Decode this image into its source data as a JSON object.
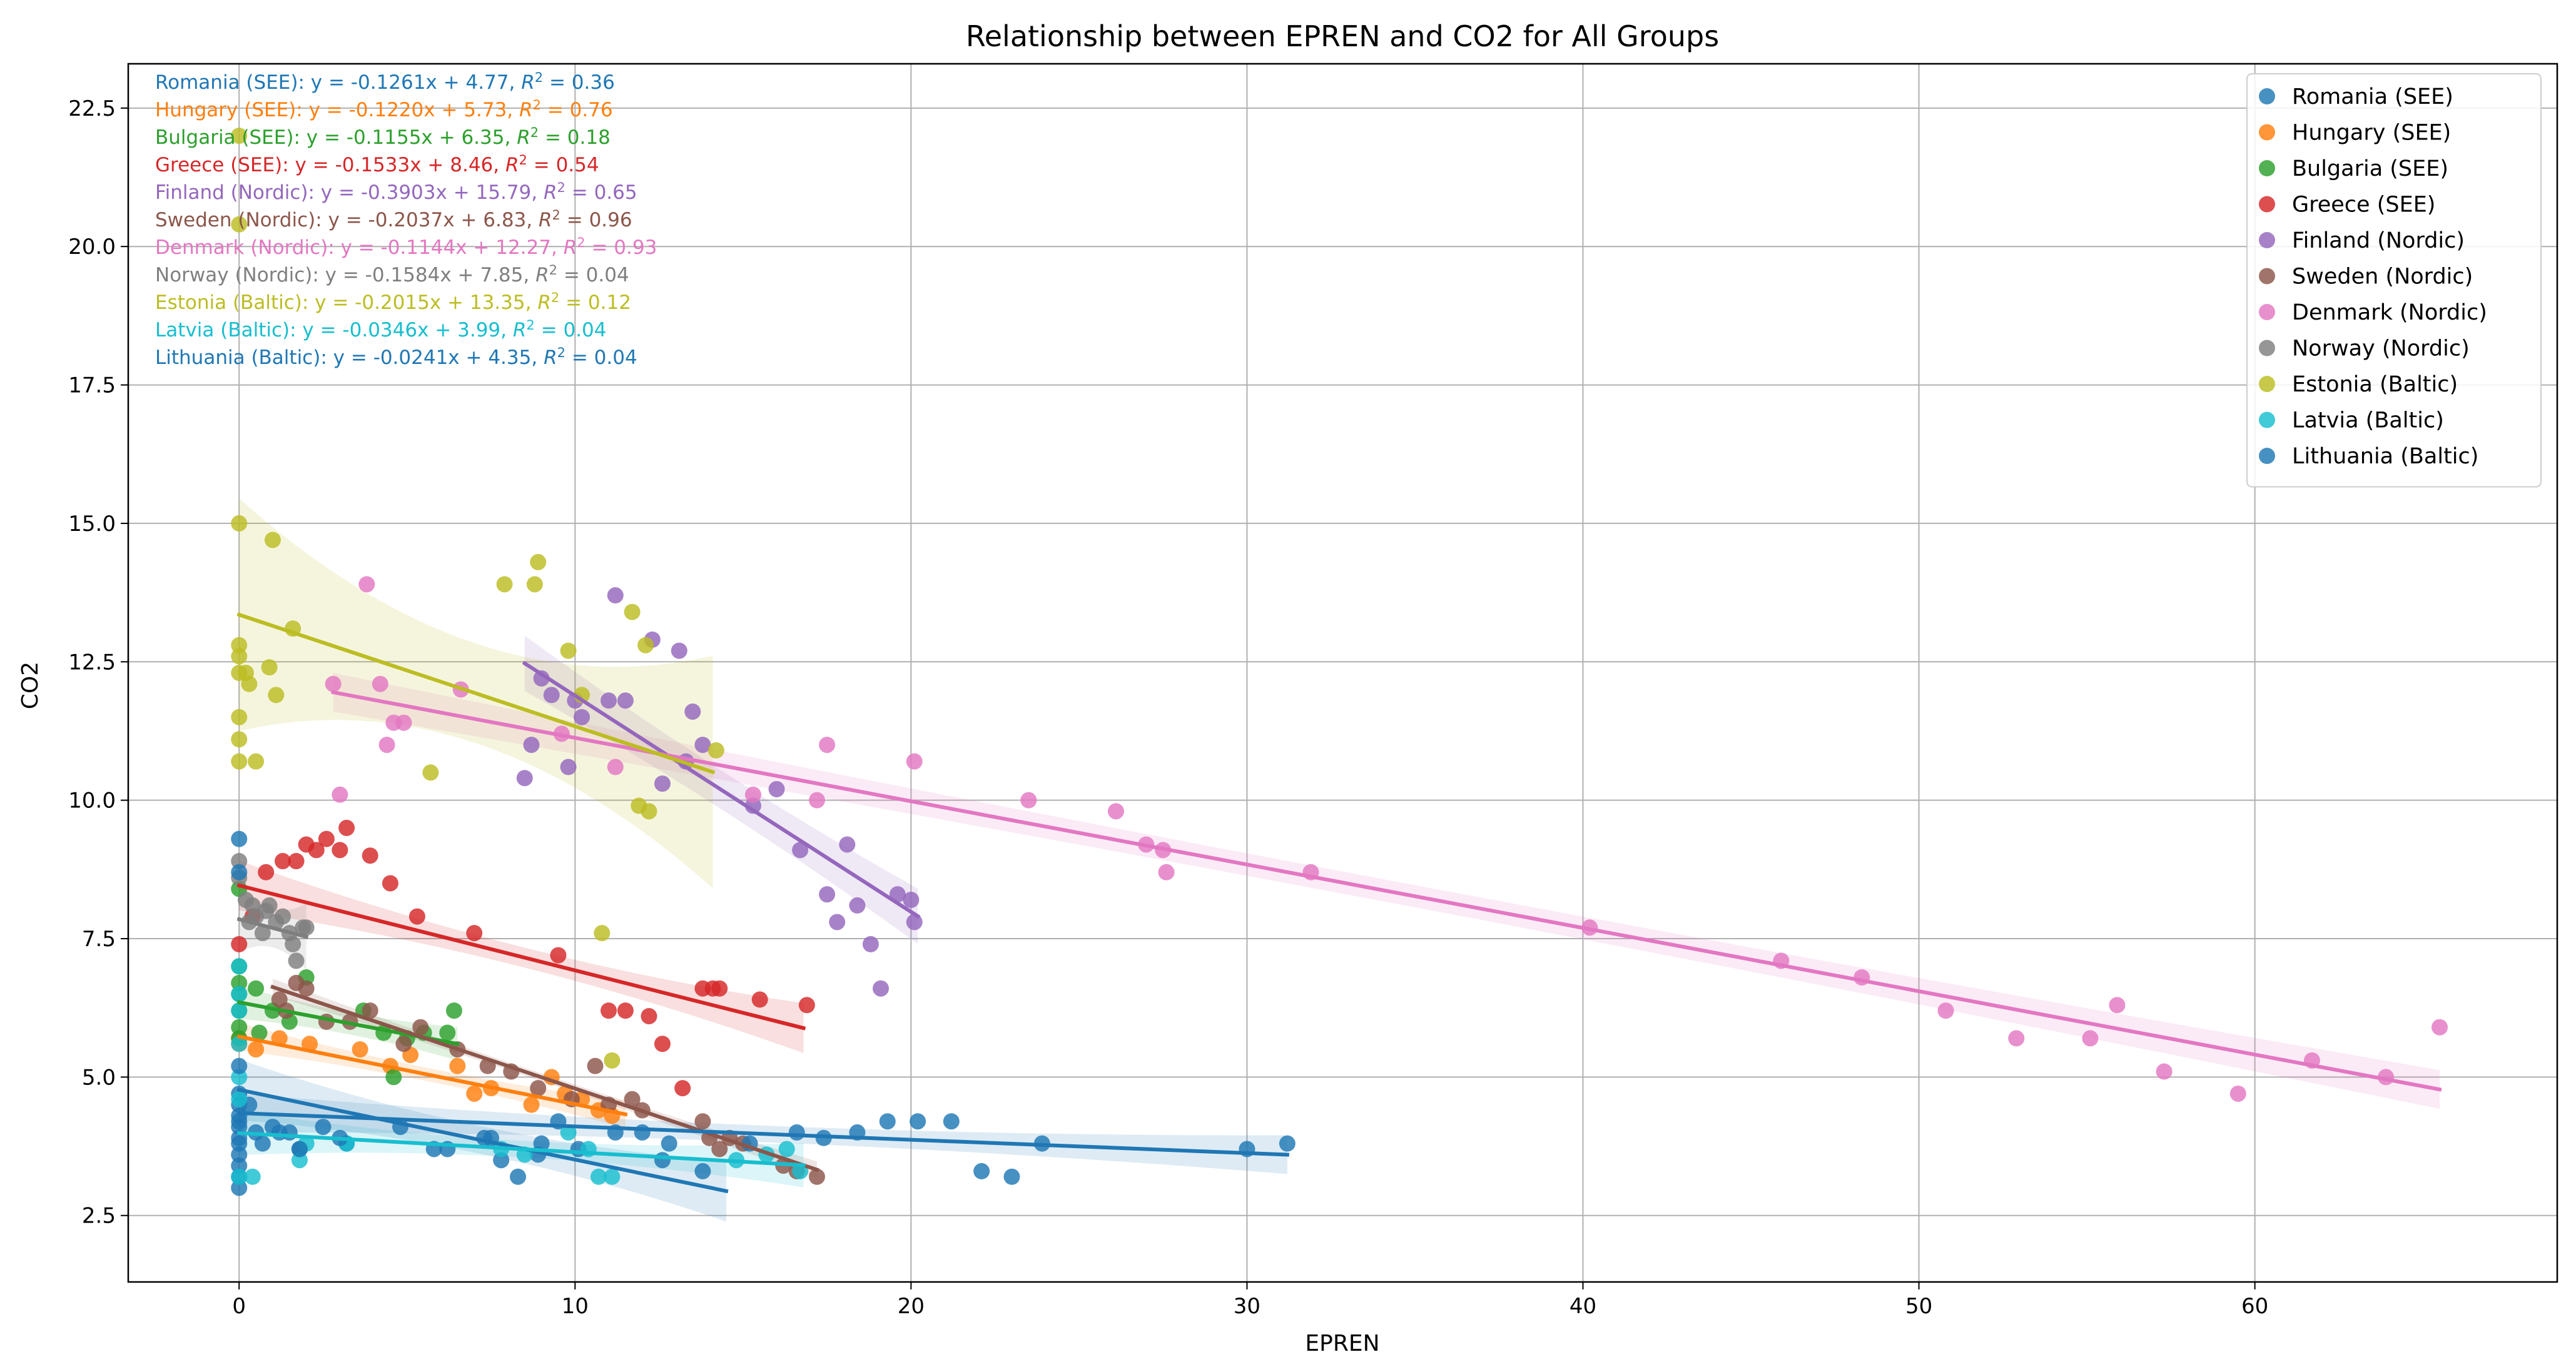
{
  "chart_data": {
    "type": "scatter",
    "title": "Relationship between EPREN and CO2 for All Groups",
    "xlabel": "EPREN",
    "ylabel": "CO2",
    "xlim": [
      -3.3,
      69
    ],
    "ylim": [
      1.3,
      23.3
    ],
    "xticks": [
      0,
      10,
      20,
      30,
      40,
      50,
      60
    ],
    "yticks": [
      2.5,
      5.0,
      7.5,
      10.0,
      12.5,
      15.0,
      17.5,
      20.0,
      22.5
    ],
    "grid": true,
    "legend_position": "top-right",
    "series": [
      {
        "name": "Romania (SEE)",
        "color": "#1f77b4",
        "equation": "y = -0.1261x + 4.77",
        "r2": "0.36",
        "slope": -0.1261,
        "intercept": 4.77,
        "fit_range": [
          0,
          14.5
        ],
        "band": [
          0.25,
          0.55
        ],
        "points": [
          [
            0,
            4.7
          ],
          [
            0,
            4.5
          ],
          [
            0,
            4.3
          ],
          [
            0,
            4.1
          ],
          [
            0,
            3.9
          ],
          [
            0,
            3.6
          ],
          [
            0,
            3.4
          ],
          [
            0,
            3.2
          ],
          [
            0,
            3.0
          ],
          [
            0.3,
            4.5
          ],
          [
            0.5,
            4.0
          ],
          [
            0.7,
            3.8
          ],
          [
            1.2,
            4.0
          ],
          [
            1.8,
            3.7
          ],
          [
            2.5,
            4.1
          ],
          [
            3.2,
            3.8
          ],
          [
            4.8,
            4.1
          ],
          [
            6.2,
            3.7
          ],
          [
            7.3,
            3.9
          ],
          [
            7.8,
            3.5
          ],
          [
            8.3,
            3.2
          ],
          [
            8.9,
            3.6
          ],
          [
            9.5,
            4.2
          ],
          [
            10.1,
            3.7
          ],
          [
            11.2,
            4.0
          ],
          [
            12.6,
            3.5
          ],
          [
            13.8,
            3.3
          ]
        ]
      },
      {
        "name": "Hungary (SEE)",
        "color": "#ff7f0e",
        "equation": "y = -0.1220x + 5.73",
        "r2": "0.76",
        "slope": -0.122,
        "intercept": 5.73,
        "fit_range": [
          0,
          11.5
        ],
        "band": [
          0.12,
          0.25
        ],
        "points": [
          [
            0,
            5.7
          ],
          [
            0,
            5.6
          ],
          [
            0.5,
            5.5
          ],
          [
            1.2,
            5.7
          ],
          [
            2.1,
            5.6
          ],
          [
            3.6,
            5.5
          ],
          [
            4.5,
            5.2
          ],
          [
            5.1,
            5.4
          ],
          [
            6.5,
            5.2
          ],
          [
            7.0,
            4.7
          ],
          [
            7.5,
            4.8
          ],
          [
            8.7,
            4.5
          ],
          [
            9.3,
            5.0
          ],
          [
            9.7,
            4.7
          ],
          [
            10.2,
            4.6
          ],
          [
            10.7,
            4.4
          ],
          [
            11.1,
            4.3
          ]
        ]
      },
      {
        "name": "Bulgaria (SEE)",
        "color": "#2ca02c",
        "equation": "y = -0.1155x + 6.35",
        "r2": "0.18",
        "slope": -0.1155,
        "intercept": 6.35,
        "fit_range": [
          0,
          6.5
        ],
        "band": [
          0.2,
          0.3
        ],
        "points": [
          [
            0,
            8.4
          ],
          [
            0,
            7.0
          ],
          [
            0,
            6.7
          ],
          [
            0,
            6.5
          ],
          [
            0,
            6.2
          ],
          [
            0,
            5.9
          ],
          [
            0,
            5.7
          ],
          [
            0.5,
            6.6
          ],
          [
            0.6,
            5.8
          ],
          [
            1.0,
            6.2
          ],
          [
            1.5,
            6.0
          ],
          [
            2.0,
            6.8
          ],
          [
            3.7,
            6.2
          ],
          [
            4.3,
            5.8
          ],
          [
            4.6,
            5.0
          ],
          [
            5.0,
            5.7
          ],
          [
            5.5,
            5.8
          ],
          [
            6.2,
            5.8
          ],
          [
            6.4,
            6.2
          ]
        ]
      },
      {
        "name": "Greece (SEE)",
        "color": "#d62728",
        "equation": "y = -0.1533x + 8.46",
        "r2": "0.54",
        "slope": -0.1533,
        "intercept": 8.46,
        "fit_range": [
          0,
          16.8
        ],
        "band": [
          0.18,
          0.45
        ],
        "points": [
          [
            0,
            7.4
          ],
          [
            0.4,
            7.9
          ],
          [
            0.8,
            8.7
          ],
          [
            1.3,
            8.9
          ],
          [
            1.7,
            8.9
          ],
          [
            2.0,
            9.2
          ],
          [
            2.3,
            9.1
          ],
          [
            2.6,
            9.3
          ],
          [
            3.0,
            9.1
          ],
          [
            3.2,
            9.5
          ],
          [
            3.9,
            9.0
          ],
          [
            4.5,
            8.5
          ],
          [
            5.3,
            7.9
          ],
          [
            7.0,
            7.6
          ],
          [
            9.5,
            7.2
          ],
          [
            11.0,
            6.2
          ],
          [
            11.5,
            6.2
          ],
          [
            12.2,
            6.1
          ],
          [
            12.6,
            5.6
          ],
          [
            13.2,
            4.8
          ],
          [
            13.8,
            6.6
          ],
          [
            14.1,
            6.6
          ],
          [
            14.3,
            6.6
          ],
          [
            15.5,
            6.4
          ],
          [
            16.9,
            6.3
          ]
        ]
      },
      {
        "name": "Finland (Nordic)",
        "color": "#9467bd",
        "equation": "y = -0.3903x + 15.79",
        "r2": "0.65",
        "slope": -0.3903,
        "intercept": 15.79,
        "fit_range": [
          8.5,
          20.2
        ],
        "band": [
          0.35,
          0.5
        ],
        "points": [
          [
            8.5,
            10.4
          ],
          [
            8.7,
            11.0
          ],
          [
            9.0,
            12.2
          ],
          [
            9.3,
            11.9
          ],
          [
            9.8,
            10.6
          ],
          [
            10.0,
            11.8
          ],
          [
            10.2,
            11.5
          ],
          [
            11.0,
            11.8
          ],
          [
            11.2,
            13.7
          ],
          [
            11.5,
            11.8
          ],
          [
            12.3,
            12.9
          ],
          [
            12.6,
            10.3
          ],
          [
            13.1,
            12.7
          ],
          [
            13.3,
            10.7
          ],
          [
            13.5,
            11.6
          ],
          [
            13.8,
            11.0
          ],
          [
            15.3,
            9.9
          ],
          [
            16.0,
            10.2
          ],
          [
            16.7,
            9.1
          ],
          [
            17.5,
            8.3
          ],
          [
            17.8,
            7.8
          ],
          [
            18.1,
            9.2
          ],
          [
            18.4,
            8.1
          ],
          [
            18.8,
            7.4
          ],
          [
            19.1,
            6.6
          ],
          [
            19.6,
            8.3
          ],
          [
            20.0,
            8.2
          ],
          [
            20.1,
            7.8
          ]
        ]
      },
      {
        "name": "Sweden (Nordic)",
        "color": "#8c564b",
        "equation": "y = -0.2037x + 6.83",
        "r2": "0.96",
        "slope": -0.2037,
        "intercept": 6.83,
        "fit_range": [
          1.0,
          17.2
        ],
        "band": [
          0.07,
          0.15
        ],
        "points": [
          [
            1.2,
            6.4
          ],
          [
            1.4,
            6.2
          ],
          [
            1.7,
            6.7
          ],
          [
            2.0,
            6.6
          ],
          [
            2.6,
            6.0
          ],
          [
            3.3,
            6.0
          ],
          [
            3.9,
            6.2
          ],
          [
            4.9,
            5.6
          ],
          [
            5.4,
            5.9
          ],
          [
            6.5,
            5.5
          ],
          [
            7.4,
            5.2
          ],
          [
            8.1,
            5.1
          ],
          [
            8.9,
            4.8
          ],
          [
            9.9,
            4.6
          ],
          [
            10.6,
            5.2
          ],
          [
            11.0,
            4.5
          ],
          [
            11.7,
            4.6
          ],
          [
            12.0,
            4.4
          ],
          [
            13.8,
            4.2
          ],
          [
            14.0,
            3.9
          ],
          [
            14.3,
            3.7
          ],
          [
            14.6,
            3.9
          ],
          [
            15.0,
            3.8
          ],
          [
            16.2,
            3.4
          ],
          [
            16.6,
            3.3
          ],
          [
            17.2,
            3.2
          ]
        ]
      },
      {
        "name": "Denmark (Nordic)",
        "color": "#e377c2",
        "equation": "y = -0.1144x + 12.27",
        "r2": "0.93",
        "slope": -0.1144,
        "intercept": 12.27,
        "fit_range": [
          2.8,
          65.5
        ],
        "band": [
          0.2,
          0.35
        ],
        "points": [
          [
            2.8,
            12.1
          ],
          [
            3.0,
            10.1
          ],
          [
            3.8,
            13.9
          ],
          [
            4.2,
            12.1
          ],
          [
            4.4,
            11.0
          ],
          [
            4.6,
            11.4
          ],
          [
            4.9,
            11.4
          ],
          [
            6.6,
            12.0
          ],
          [
            9.6,
            11.2
          ],
          [
            11.2,
            10.6
          ],
          [
            15.3,
            10.1
          ],
          [
            17.2,
            10.0
          ],
          [
            17.5,
            11.0
          ],
          [
            20.1,
            10.7
          ],
          [
            23.5,
            10.0
          ],
          [
            26.1,
            9.8
          ],
          [
            27.0,
            9.2
          ],
          [
            27.5,
            9.1
          ],
          [
            27.6,
            8.7
          ],
          [
            31.9,
            8.7
          ],
          [
            40.2,
            7.7
          ],
          [
            45.9,
            7.1
          ],
          [
            48.3,
            6.8
          ],
          [
            50.8,
            6.2
          ],
          [
            52.9,
            5.7
          ],
          [
            55.1,
            5.7
          ],
          [
            55.9,
            6.3
          ],
          [
            57.3,
            5.1
          ],
          [
            59.5,
            4.7
          ],
          [
            61.7,
            5.3
          ],
          [
            63.9,
            5.0
          ],
          [
            65.5,
            5.9
          ]
        ]
      },
      {
        "name": "Norway (Nordic)",
        "color": "#7f7f7f",
        "equation": "y = -0.1584x + 7.85",
        "r2": "0.04",
        "slope": -0.1584,
        "intercept": 7.85,
        "fit_range": [
          0,
          2.0
        ],
        "band": [
          0.35,
          0.6
        ],
        "points": [
          [
            0,
            8.9
          ],
          [
            0,
            8.6
          ],
          [
            0.2,
            8.2
          ],
          [
            0.3,
            7.8
          ],
          [
            0.4,
            8.1
          ],
          [
            0.5,
            7.9
          ],
          [
            0.7,
            7.6
          ],
          [
            0.8,
            8.0
          ],
          [
            0.9,
            8.1
          ],
          [
            1.1,
            7.8
          ],
          [
            1.3,
            7.9
          ],
          [
            1.5,
            7.6
          ],
          [
            1.6,
            7.4
          ],
          [
            1.7,
            7.1
          ],
          [
            1.9,
            7.7
          ],
          [
            2.0,
            7.7
          ]
        ]
      },
      {
        "name": "Estonia (Baltic)",
        "color": "#bcbd22",
        "equation": "y = -0.2015x + 13.35",
        "r2": "0.12",
        "slope": -0.2015,
        "intercept": 13.35,
        "fit_range": [
          0,
          14.1
        ],
        "band": [
          0.9,
          2.1
        ],
        "points": [
          [
            0,
            22.0
          ],
          [
            0,
            20.4
          ],
          [
            0,
            15.0
          ],
          [
            0,
            12.8
          ],
          [
            0,
            12.6
          ],
          [
            0,
            12.3
          ],
          [
            0,
            11.5
          ],
          [
            0,
            11.1
          ],
          [
            0,
            10.7
          ],
          [
            0.2,
            12.3
          ],
          [
            0.3,
            12.1
          ],
          [
            0.5,
            10.7
          ],
          [
            0.9,
            12.4
          ],
          [
            1.0,
            14.7
          ],
          [
            1.1,
            11.9
          ],
          [
            1.6,
            13.1
          ],
          [
            5.7,
            10.5
          ],
          [
            7.9,
            13.9
          ],
          [
            8.8,
            13.9
          ],
          [
            8.9,
            14.3
          ],
          [
            9.8,
            12.7
          ],
          [
            10.2,
            11.9
          ],
          [
            10.8,
            7.6
          ],
          [
            11.1,
            5.3
          ],
          [
            11.7,
            13.4
          ],
          [
            11.9,
            9.9
          ],
          [
            12.1,
            12.8
          ],
          [
            12.2,
            9.8
          ],
          [
            14.2,
            10.9
          ]
        ]
      },
      {
        "name": "Latvia (Baltic)",
        "color": "#17becf",
        "equation": "y = -0.0346x + 3.99",
        "r2": "0.04",
        "slope": -0.0346,
        "intercept": 3.99,
        "fit_range": [
          0,
          16.8
        ],
        "band": [
          0.15,
          0.4
        ],
        "points": [
          [
            0,
            7.0
          ],
          [
            0,
            6.5
          ],
          [
            0,
            6.2
          ],
          [
            0,
            5.6
          ],
          [
            0,
            5.0
          ],
          [
            0,
            4.6
          ],
          [
            0,
            3.2
          ],
          [
            0.4,
            3.2
          ],
          [
            1.8,
            3.5
          ],
          [
            2.0,
            3.8
          ],
          [
            3.2,
            3.8
          ],
          [
            7.8,
            3.7
          ],
          [
            8.5,
            3.6
          ],
          [
            9.8,
            4.0
          ],
          [
            10.4,
            3.7
          ],
          [
            10.7,
            3.2
          ],
          [
            11.1,
            3.2
          ],
          [
            14.8,
            3.5
          ],
          [
            15.7,
            3.6
          ],
          [
            16.3,
            3.7
          ],
          [
            16.7,
            3.3
          ]
        ]
      },
      {
        "name": "Lithuania (Baltic)",
        "color": "#1f77b4",
        "equation": "y = -0.0241x + 4.35",
        "r2": "0.04",
        "slope": -0.0241,
        "intercept": 4.35,
        "fit_range": [
          0,
          31.2
        ],
        "band": [
          0.15,
          0.35
        ],
        "points": [
          [
            0,
            9.3
          ],
          [
            0,
            8.7
          ],
          [
            0,
            5.2
          ],
          [
            0,
            4.2
          ],
          [
            0,
            3.8
          ],
          [
            1.0,
            4.1
          ],
          [
            1.5,
            4.0
          ],
          [
            1.8,
            3.7
          ],
          [
            3.0,
            3.9
          ],
          [
            5.8,
            3.7
          ],
          [
            7.5,
            3.9
          ],
          [
            9.0,
            3.8
          ],
          [
            12.0,
            4.0
          ],
          [
            12.8,
            3.8
          ],
          [
            15.2,
            3.8
          ],
          [
            16.6,
            4.0
          ],
          [
            17.4,
            3.9
          ],
          [
            18.4,
            4.0
          ],
          [
            19.3,
            4.2
          ],
          [
            20.2,
            4.2
          ],
          [
            21.2,
            4.2
          ],
          [
            22.1,
            3.3
          ],
          [
            23.0,
            3.2
          ],
          [
            23.9,
            3.8
          ],
          [
            30.0,
            3.7
          ],
          [
            31.2,
            3.8
          ]
        ]
      }
    ]
  }
}
